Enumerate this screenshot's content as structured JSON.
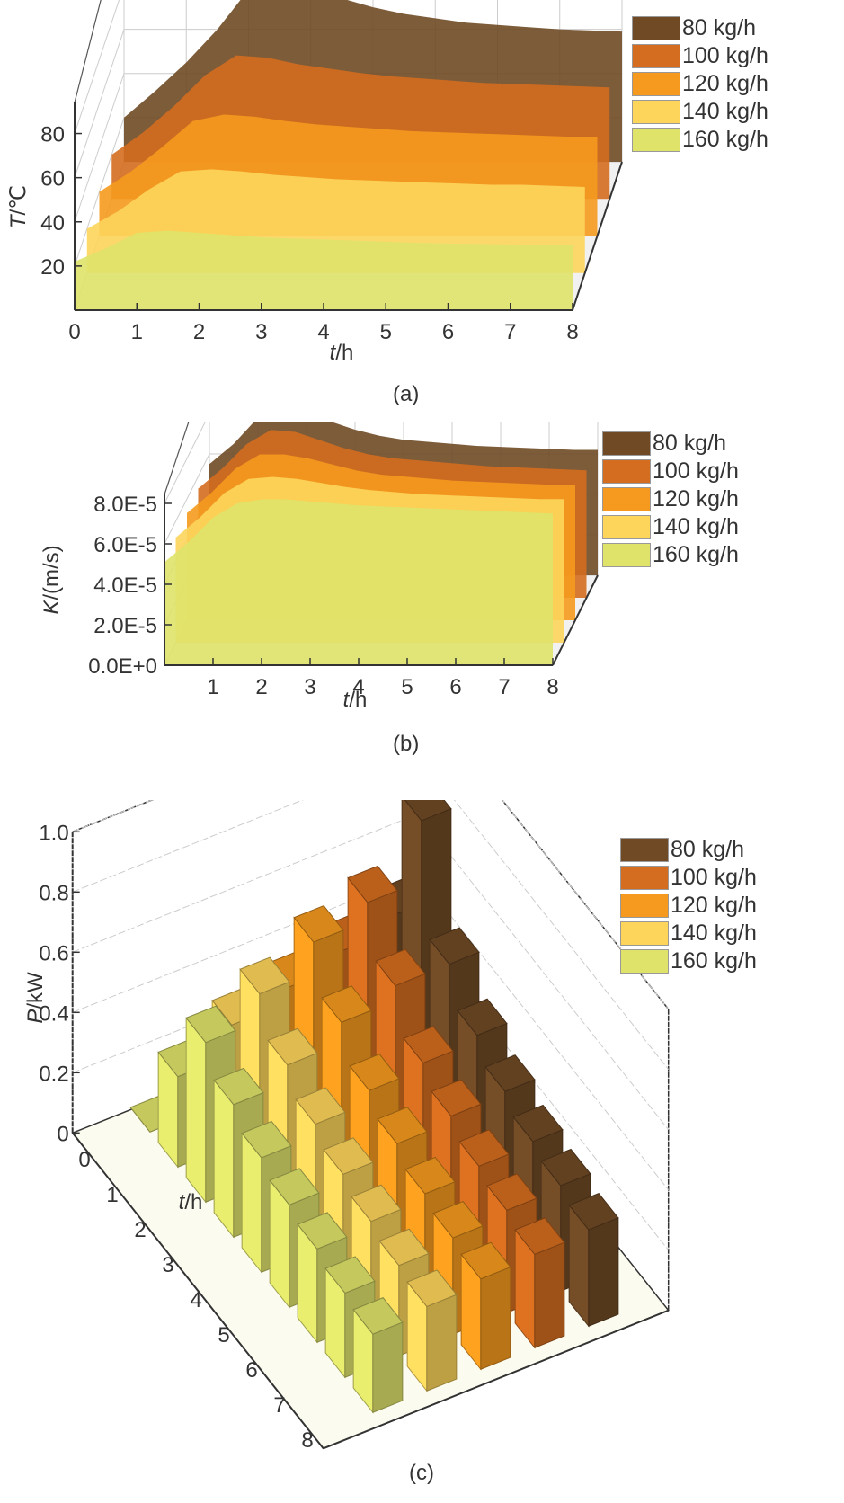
{
  "series_names": [
    "80 kg/h",
    "100 kg/h",
    "120 kg/h",
    "140 kg/h",
    "160 kg/h"
  ],
  "series_colors": [
    "#6f4a25",
    "#d46d1f",
    "#f59a1e",
    "#fdd55b",
    "#dfe36a"
  ],
  "captions": {
    "a": "(a)",
    "b": "(b)",
    "c": "(c)"
  },
  "chart_data": [
    {
      "id": "a",
      "type": "area",
      "title": "",
      "xlabel_italic": "t",
      "xlabel_unit": "/h",
      "ylabel_italic": "T",
      "ylabel_unit": "/℃",
      "xlim": [
        0,
        8
      ],
      "ylim": [
        0,
        90
      ],
      "xticks": [
        "0",
        "1",
        "2",
        "3",
        "4",
        "5",
        "6",
        "7",
        "8"
      ],
      "yticks": [
        "20",
        "40",
        "60",
        "80"
      ],
      "ytick_values": [
        20,
        40,
        60,
        80
      ],
      "grid": true,
      "legend": "top-right",
      "x": [
        0,
        0.5,
        1,
        1.5,
        2,
        2.5,
        3,
        3.5,
        4,
        4.5,
        5,
        5.5,
        6,
        6.5,
        7,
        7.5,
        8
      ],
      "series": [
        {
          "name": "80 kg/h",
          "values": [
            20,
            32,
            45,
            60,
            78,
            86,
            80,
            74,
            70,
            67,
            65,
            63,
            62,
            61,
            60,
            59.5,
            59
          ]
        },
        {
          "name": "100 kg/h",
          "values": [
            20,
            30,
            42,
            56,
            65,
            64,
            61,
            59,
            57,
            55.5,
            54.5,
            53.5,
            52.5,
            52,
            51.5,
            51,
            50.5
          ]
        },
        {
          "name": "120 kg/h",
          "values": [
            20,
            29,
            40,
            52,
            55,
            54,
            52,
            50.5,
            49.5,
            48.5,
            47.5,
            47,
            46.5,
            46,
            45.5,
            45,
            45
          ]
        },
        {
          "name": "140 kg/h",
          "values": [
            20,
            28,
            38,
            46,
            47,
            46,
            44.5,
            43.5,
            42.5,
            42,
            41.5,
            41,
            40.5,
            40,
            40,
            39.5,
            39
          ]
        },
        {
          "name": "160 kg/h",
          "values": [
            22,
            28,
            35,
            36,
            35,
            34,
            33,
            32.5,
            32,
            31.5,
            31,
            30.5,
            30.2,
            30,
            29.8,
            29.6,
            29.5
          ]
        }
      ]
    },
    {
      "id": "b",
      "type": "area",
      "title": "",
      "xlabel_italic": "t",
      "xlabel_unit": "/h",
      "ylabel_italic": "K",
      "ylabel_unit": "/(m/s)",
      "xlim": [
        0,
        8
      ],
      "ylim": [
        0,
        8e-05
      ],
      "xticks": [
        "1",
        "2",
        "3",
        "4",
        "5",
        "6",
        "7",
        "8"
      ],
      "yticks": [
        "0.0E+0",
        "2.0E-5",
        "4.0E-5",
        "6.0E-5",
        "8.0E-5"
      ],
      "ytick_values": [
        0,
        2e-05,
        4e-05,
        6e-05,
        8e-05
      ],
      "grid": true,
      "legend": "top-right",
      "x": [
        0,
        0.5,
        1,
        1.5,
        2,
        2.5,
        3,
        3.5,
        4,
        4.5,
        5,
        5.5,
        6,
        6.5,
        7,
        7.5,
        8
      ],
      "series": [
        {
          "name": "80 kg/h",
          "values": [
            5.5e-05,
            6.5e-05,
            7.8e-05,
            8.6e-05,
            8.2e-05,
            7.6e-05,
            7.2e-05,
            6.9e-05,
            6.7e-05,
            6.6e-05,
            6.5e-05,
            6.4e-05,
            6.35e-05,
            6.3e-05,
            6.25e-05,
            6.2e-05,
            6.2e-05
          ]
        },
        {
          "name": "100 kg/h",
          "values": [
            5.4e-05,
            6.4e-05,
            7.6e-05,
            8.3e-05,
            8.2e-05,
            7.8e-05,
            7.4e-05,
            7.1e-05,
            6.9e-05,
            6.8e-05,
            6.7e-05,
            6.6e-05,
            6.5e-05,
            6.45e-05,
            6.4e-05,
            6.35e-05,
            6.3e-05
          ]
        },
        {
          "name": "120 kg/h",
          "values": [
            5.3e-05,
            6.3e-05,
            7.5e-05,
            8.2e-05,
            8.2e-05,
            8e-05,
            7.7e-05,
            7.4e-05,
            7.2e-05,
            7.1e-05,
            7e-05,
            6.9e-05,
            6.85e-05,
            6.8e-05,
            6.75e-05,
            6.7e-05,
            6.7e-05
          ]
        },
        {
          "name": "140 kg/h",
          "values": [
            5.2e-05,
            6.2e-05,
            7.4e-05,
            8.1e-05,
            8.2e-05,
            8.1e-05,
            7.9e-05,
            7.7e-05,
            7.55e-05,
            7.45e-05,
            7.35e-05,
            7.3e-05,
            7.25e-05,
            7.2e-05,
            7.15e-05,
            7.1e-05,
            7.1e-05
          ]
        },
        {
          "name": "160 kg/h",
          "values": [
            5.1e-05,
            6.1e-05,
            7.3e-05,
            8e-05,
            8.2e-05,
            8.2e-05,
            8.1e-05,
            8e-05,
            7.9e-05,
            7.85e-05,
            7.8e-05,
            7.75e-05,
            7.7e-05,
            7.65e-05,
            7.6e-05,
            7.55e-05,
            7.5e-05
          ]
        }
      ]
    },
    {
      "id": "c",
      "type": "bar",
      "title": "",
      "xlabel_italic": "t",
      "xlabel_unit": "/h",
      "ylabel_italic": "P",
      "ylabel_unit": "/kW",
      "ylim": [
        0,
        1.0
      ],
      "categories": [
        "0",
        "1",
        "2",
        "3",
        "4",
        "5",
        "6",
        "7",
        "8"
      ],
      "yticks": [
        "0",
        "0.2",
        "0.4",
        "0.6",
        "0.8",
        "1.0"
      ],
      "ytick_values": [
        0,
        0.2,
        0.4,
        0.6,
        0.8,
        1.0
      ],
      "grid": true,
      "legend": "top-right",
      "series": [
        {
          "name": "80 kg/h",
          "values": [
            0,
            0.55,
            0.98,
            0.62,
            0.5,
            0.43,
            0.38,
            0.35,
            0.32
          ]
        },
        {
          "name": "100 kg/h",
          "values": [
            0,
            0.5,
            0.78,
            0.62,
            0.48,
            0.42,
            0.37,
            0.34,
            0.31
          ]
        },
        {
          "name": "120 kg/h",
          "values": [
            0,
            0.45,
            0.72,
            0.57,
            0.46,
            0.4,
            0.35,
            0.32,
            0.3
          ]
        },
        {
          "name": "140 kg/h",
          "values": [
            0,
            0.4,
            0.62,
            0.5,
            0.42,
            0.37,
            0.33,
            0.3,
            0.28
          ]
        },
        {
          "name": "160 kg/h",
          "values": [
            0,
            0.3,
            0.53,
            0.44,
            0.38,
            0.34,
            0.31,
            0.28,
            0.26
          ]
        }
      ]
    }
  ]
}
